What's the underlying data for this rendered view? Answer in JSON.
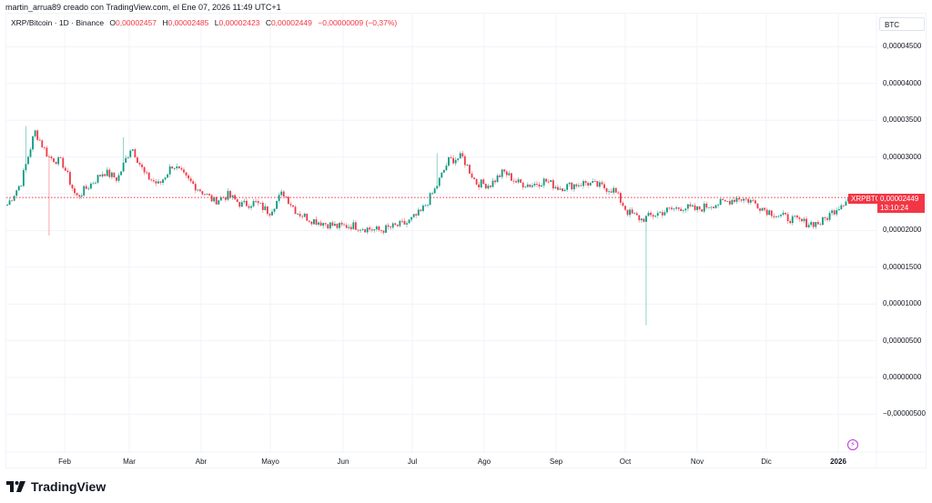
{
  "caption": "martin_arrua89 creado con TradingView.com, el Ene 07, 2026 11:49 UTC+1",
  "legend": {
    "symbol": "XRP/Bitcoin · 1D · Binance",
    "o_label": "O",
    "o_value": "0,00002457",
    "h_label": "H",
    "h_value": "0,00002485",
    "l_label": "L",
    "l_value": "0,00002423",
    "c_label": "C",
    "c_value": "0,00002449",
    "change": "−0,00000009 (−0,37%)"
  },
  "price_axis": {
    "currency": "BTC",
    "ticks": [
      {
        "label": "0,00004500",
        "value": 4.5e-05
      },
      {
        "label": "0,00004000",
        "value": 4e-05
      },
      {
        "label": "0,00003500",
        "value": 3.5e-05
      },
      {
        "label": "0,00003000",
        "value": 3e-05
      },
      {
        "label": "0,00002000",
        "value": 2e-05
      },
      {
        "label": "0,00001500",
        "value": 1.5e-05
      },
      {
        "label": "0,00001000",
        "value": 1e-05
      },
      {
        "label": "0,00000500",
        "value": 5e-06
      },
      {
        "label": "0,00000000",
        "value": 0
      },
      {
        "label": "−0,00000500",
        "value": -5e-06
      }
    ]
  },
  "time_axis": {
    "ticks": [
      {
        "label": "Feb",
        "x": 71
      },
      {
        "label": "Mar",
        "x": 142
      },
      {
        "label": "Abr",
        "x": 221
      },
      {
        "label": "Mayo",
        "x": 297
      },
      {
        "label": "Jun",
        "x": 377
      },
      {
        "label": "Jul",
        "x": 453
      },
      {
        "label": "Ago",
        "x": 532
      },
      {
        "label": "Sep",
        "x": 611
      },
      {
        "label": "Oct",
        "x": 687
      },
      {
        "label": "Nov",
        "x": 766
      },
      {
        "label": "Dic",
        "x": 842
      },
      {
        "label": "2026",
        "x": 921,
        "bold": true
      }
    ]
  },
  "last_price": {
    "symbol": "XRPBTC",
    "price": "0,00002449",
    "countdown": "13:10:24",
    "value": 2.449e-05
  },
  "colors": {
    "up": "#089981",
    "down": "#f23645",
    "grid": "#f0f3fa",
    "text": "#131722",
    "price_line": "#f23645"
  },
  "logo_text": "TradingView",
  "chart_data": {
    "type": "candlestick",
    "title": "XRP/Bitcoin · 1D · Binance",
    "xlabel": "",
    "ylabel": "BTC",
    "ylim": [
      -7.5e-06,
      4.65e-05
    ],
    "x_range": [
      "2025-01-09",
      "2026-01-07"
    ],
    "x_ticks": [
      "Feb",
      "Mar",
      "Abr",
      "Mayo",
      "Jun",
      "Jul",
      "Ago",
      "Sep",
      "Oct",
      "Nov",
      "Dic",
      "2026"
    ],
    "grid": true,
    "last_close": 2.449e-05,
    "series": [
      {
        "name": "XRPBTC",
        "description": "weekly-sampled approximate closes (BTC)",
        "closes": [
          2.35e-05,
          2.65e-05,
          3.35e-05,
          3e-05,
          2.92e-05,
          2.45e-05,
          2.62e-05,
          2.8e-05,
          2.7e-05,
          3.15e-05,
          2.75e-05,
          2.62e-05,
          2.9e-05,
          2.7e-05,
          2.55e-05,
          2.4e-05,
          2.48e-05,
          2.35e-05,
          2.38e-05,
          2.25e-05,
          2.52e-05,
          2.25e-05,
          2.15e-05,
          2.1e-05,
          2.05e-05,
          2.07e-05,
          2.03e-05,
          2e-05,
          2.05e-05,
          2.1e-05,
          2.25e-05,
          2.55e-05,
          2.95e-05,
          3e-05,
          2.65e-05,
          2.62e-05,
          2.8e-05,
          2.65e-05,
          2.62e-05,
          2.68e-05,
          2.58e-05,
          2.62e-05,
          2.65e-05,
          2.6e-05,
          2.55e-05,
          2.25e-05,
          2.15e-05,
          2.22e-05,
          2.28e-05,
          2.32e-05,
          2.28e-05,
          2.35e-05,
          2.38e-05,
          2.45e-05,
          2.4e-05,
          2.28e-05,
          2.2e-05,
          2.15e-05,
          2.1e-05,
          2.1e-05,
          2.28e-05,
          2.45e-05
        ]
      },
      {
        "name": "notable",
        "description": "notable wicks",
        "events": [
          {
            "when": "late Jan",
            "low": 1.93e-05
          },
          {
            "when": "mid Jan",
            "high": 3.42e-05
          },
          {
            "when": "early Mar",
            "high": 3.27e-05
          },
          {
            "when": "mid Jul",
            "high": 3.05e-05
          },
          {
            "when": "~10 Oct",
            "low": 7.1e-06
          }
        ]
      }
    ]
  }
}
